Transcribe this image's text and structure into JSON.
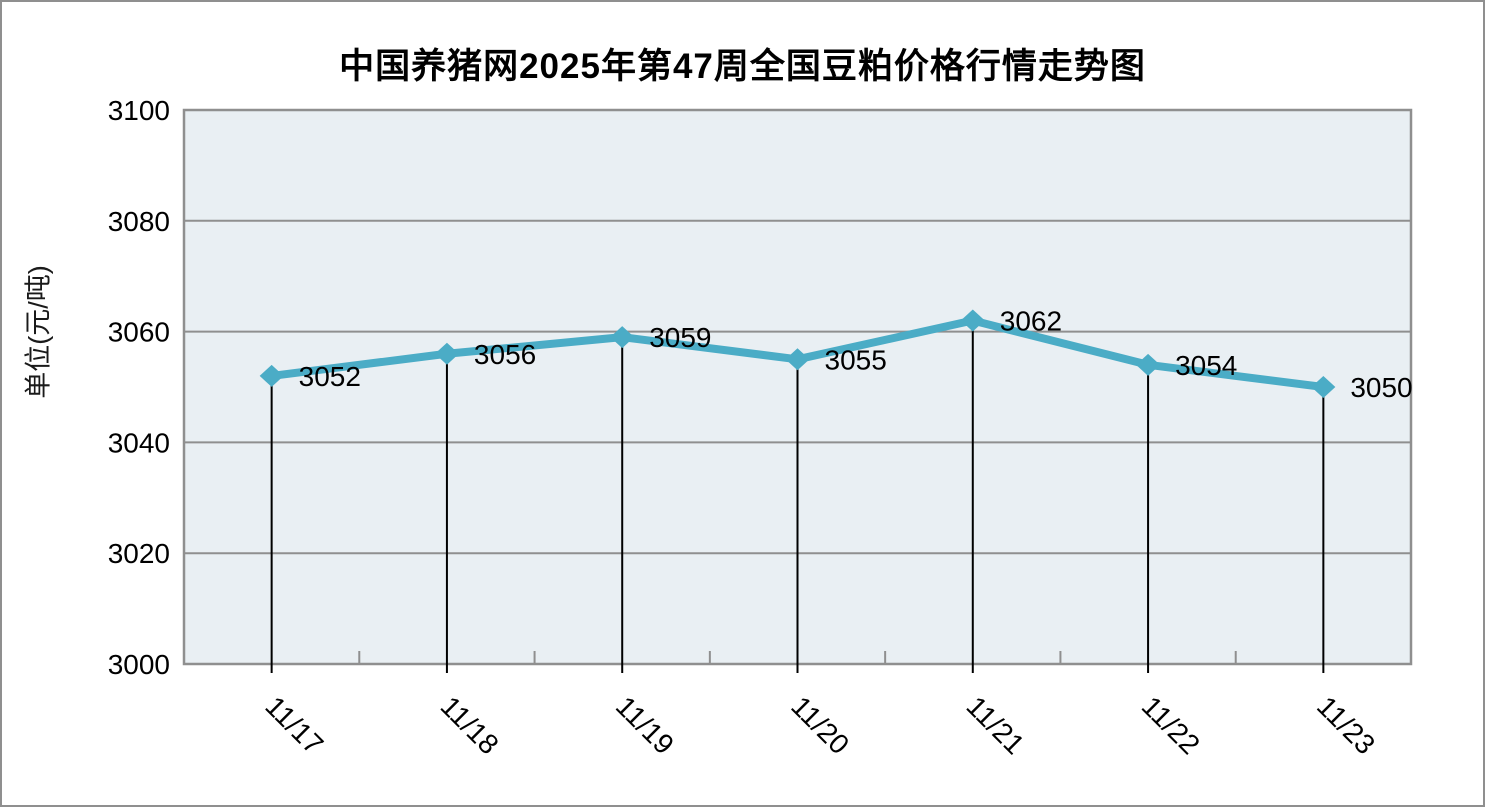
{
  "page": {
    "title": "中国养猪网2025年第47周全国豆粕价格行情走势图"
  },
  "chart_data": {
    "type": "line",
    "title": "中国养猪网2025年第47周全国豆粕价格行情走势图",
    "ylabel": "单位(元/吨)",
    "xlabel": "",
    "categories": [
      "11/17",
      "11/18",
      "11/19",
      "11/20",
      "11/21",
      "11/22",
      "11/23"
    ],
    "values": [
      3052,
      3056,
      3059,
      3055,
      3062,
      3054,
      3050
    ],
    "data_labels": [
      "3052",
      "3056",
      "3059",
      "3055",
      "3062",
      "3054",
      "3050"
    ],
    "ylim": [
      3000,
      3100
    ],
    "yticks": [
      3000,
      3020,
      3040,
      3060,
      3080,
      3100
    ],
    "grid": "horizontal",
    "legend": "none",
    "marker": "diamond",
    "drop_lines": true,
    "colors": {
      "line": "#4BACC6",
      "marker": "#4BACC6",
      "plot_background": "#E9EFF3",
      "grid": "#8f8f8f",
      "axis": "#8f8f8f",
      "drop_line": "#000000",
      "text": "#000000"
    }
  }
}
